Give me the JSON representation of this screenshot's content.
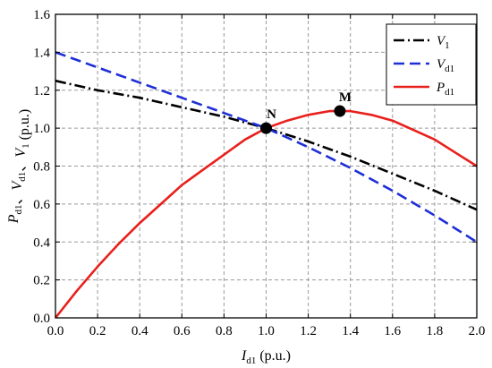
{
  "chart_data": {
    "type": "line",
    "title": "",
    "xlabel": {
      "main": "I",
      "sub": "d1",
      "unit": " (p.u.)"
    },
    "ylabel": [
      {
        "main": "P",
        "sub": "d1"
      },
      {
        "main": "、",
        "sub": ""
      },
      {
        "main": "V",
        "sub": "d1"
      },
      {
        "main": "、",
        "sub": ""
      },
      {
        "main": "V",
        "sub": "1"
      },
      {
        "main": " (p.u.)",
        "sub": ""
      }
    ],
    "xlim": [
      0,
      2.0
    ],
    "ylim": [
      0,
      1.6
    ],
    "xticks": [
      "0.0",
      "0.2",
      "0.4",
      "0.6",
      "0.8",
      "1.0",
      "1.2",
      "1.4",
      "1.6",
      "1.8",
      "2.0"
    ],
    "yticks": [
      "0.0",
      "0.2",
      "0.4",
      "0.6",
      "0.8",
      "1.0",
      "1.2",
      "1.4",
      "1.6"
    ],
    "grid": true,
    "legend_position": "top-right",
    "series": [
      {
        "name": {
          "main": "V",
          "sub": "1"
        },
        "color": "#000000",
        "style": "dashdot",
        "x": [
          0,
          0.2,
          0.4,
          0.6,
          0.8,
          1.0,
          1.2,
          1.4,
          1.6,
          1.8,
          2.0
        ],
        "y": [
          1.25,
          1.2,
          1.16,
          1.11,
          1.06,
          1.0,
          0.93,
          0.85,
          0.76,
          0.67,
          0.57
        ]
      },
      {
        "name": {
          "main": "V",
          "sub": "d1"
        },
        "color": "#1f2fd6",
        "style": "dashed",
        "x": [
          0,
          0.2,
          0.4,
          0.6,
          0.8,
          1.0,
          1.2,
          1.4,
          1.6,
          1.8,
          2.0
        ],
        "y": [
          1.4,
          1.32,
          1.24,
          1.16,
          1.08,
          1.0,
          0.9,
          0.79,
          0.67,
          0.54,
          0.4
        ]
      },
      {
        "name": {
          "main": "P",
          "sub": "d1"
        },
        "color": "#e8201c",
        "style": "solid",
        "x": [
          0,
          0.1,
          0.2,
          0.3,
          0.4,
          0.5,
          0.6,
          0.7,
          0.8,
          0.9,
          1.0,
          1.1,
          1.2,
          1.3,
          1.35,
          1.4,
          1.5,
          1.6,
          1.7,
          1.8,
          1.9,
          2.0
        ],
        "y": [
          0.0,
          0.14,
          0.27,
          0.39,
          0.5,
          0.6,
          0.7,
          0.78,
          0.86,
          0.94,
          1.0,
          1.04,
          1.07,
          1.09,
          1.09,
          1.09,
          1.07,
          1.04,
          0.99,
          0.94,
          0.87,
          0.8
        ]
      }
    ],
    "points": [
      {
        "label": "N",
        "x": 1.0,
        "y": 1.0
      },
      {
        "label": "M",
        "x": 1.35,
        "y": 1.09
      }
    ]
  }
}
